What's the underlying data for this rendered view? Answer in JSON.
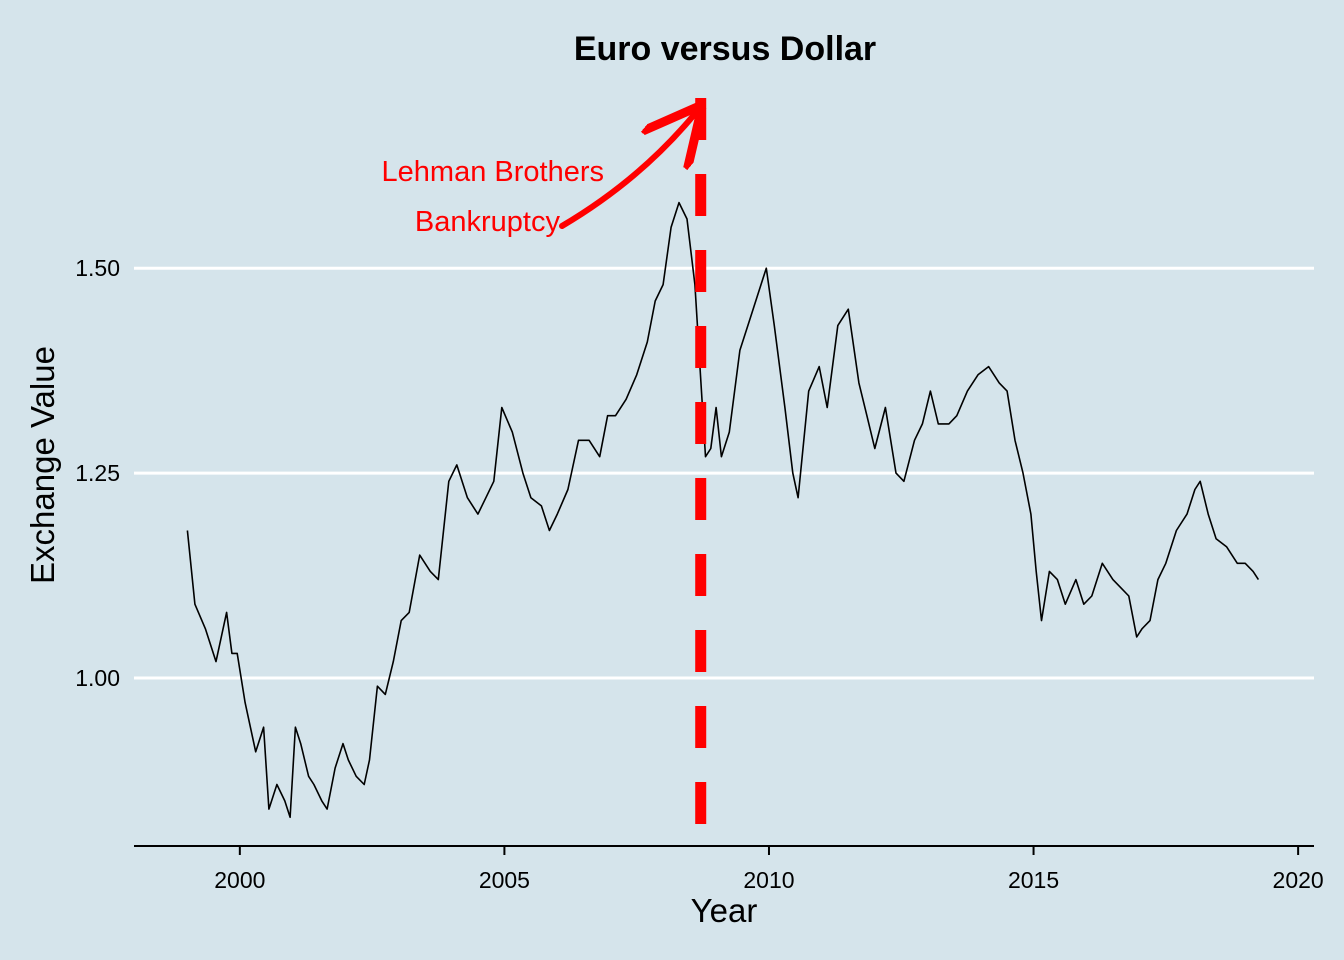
{
  "chart_data": {
    "type": "line",
    "title": "Euro versus Dollar",
    "xlabel": "Year",
    "ylabel": "Exchange Value",
    "xlim": [
      1998.0,
      2020.3
    ],
    "ylim": [
      0.795,
      1.715
    ],
    "x_ticks": [
      2000,
      2005,
      2010,
      2015,
      2020
    ],
    "x_tick_labels": [
      "2000",
      "2005",
      "2010",
      "2015",
      "2020"
    ],
    "y_ticks": [
      1.0,
      1.25,
      1.5
    ],
    "y_tick_labels": [
      "1.00",
      "1.25",
      "1.50"
    ],
    "grid": "horizontal major lines",
    "legend": "none",
    "colors": {
      "background": "#d5e4eb",
      "gridline": "#ffffff",
      "line": "#000000",
      "annotation": "#ff0000"
    },
    "series": [
      {
        "x": [
          1999.01,
          1999.15,
          1999.35,
          1999.55,
          1999.75,
          1999.85,
          1999.95,
          2000.1,
          2000.3,
          2000.45,
          2000.55,
          2000.7,
          2000.85,
          2000.95,
          2001.05,
          2001.15,
          2001.3,
          2001.4,
          2001.55,
          2001.65,
          2001.8,
          2001.95,
          2002.05,
          2002.2,
          2002.35,
          2002.45,
          2002.6,
          2002.75,
          2002.9,
          2003.05,
          2003.2,
          2003.4,
          2003.6,
          2003.75,
          2003.95,
          2004.1,
          2004.3,
          2004.5,
          2004.65,
          2004.8,
          2004.95,
          2005.15,
          2005.35,
          2005.5,
          2005.7,
          2005.85,
          2006.0,
          2006.2,
          2006.4,
          2006.6,
          2006.8,
          2006.95,
          2007.1,
          2007.3,
          2007.5,
          2007.7,
          2007.85,
          2008.0,
          2008.15,
          2008.3,
          2008.45,
          2008.6,
          2008.8,
          2008.9,
          2009.0,
          2009.1,
          2009.25,
          2009.45,
          2009.65,
          2009.85,
          2009.95,
          2010.1,
          2010.3,
          2010.45,
          2010.55,
          2010.75,
          2010.95,
          2011.1,
          2011.3,
          2011.5,
          2011.7,
          2011.85,
          2012.0,
          2012.2,
          2012.4,
          2012.55,
          2012.75,
          2012.9,
          2013.05,
          2013.2,
          2013.4,
          2013.55,
          2013.75,
          2013.95,
          2014.15,
          2014.35,
          2014.5,
          2014.65,
          2014.8,
          2014.95,
          2015.05,
          2015.15,
          2015.3,
          2015.45,
          2015.6,
          2015.8,
          2015.95,
          2016.1,
          2016.3,
          2016.5,
          2016.65,
          2016.8,
          2016.95,
          2017.05,
          2017.2,
          2017.35,
          2017.5,
          2017.7,
          2017.9,
          2018.05,
          2018.15,
          2018.3,
          2018.45,
          2018.65,
          2018.85,
          2019.0,
          2019.15,
          2019.25
        ],
        "y": [
          1.18,
          1.09,
          1.06,
          1.02,
          1.08,
          1.03,
          1.03,
          0.97,
          0.91,
          0.94,
          0.84,
          0.87,
          0.85,
          0.83,
          0.94,
          0.92,
          0.88,
          0.87,
          0.85,
          0.84,
          0.89,
          0.92,
          0.9,
          0.88,
          0.87,
          0.9,
          0.99,
          0.98,
          1.02,
          1.07,
          1.08,
          1.15,
          1.13,
          1.12,
          1.24,
          1.26,
          1.22,
          1.2,
          1.22,
          1.24,
          1.33,
          1.3,
          1.25,
          1.22,
          1.21,
          1.18,
          1.2,
          1.23,
          1.29,
          1.29,
          1.27,
          1.32,
          1.32,
          1.34,
          1.37,
          1.41,
          1.46,
          1.48,
          1.55,
          1.58,
          1.56,
          1.48,
          1.27,
          1.28,
          1.33,
          1.27,
          1.3,
          1.4,
          1.44,
          1.48,
          1.5,
          1.43,
          1.33,
          1.25,
          1.22,
          1.35,
          1.38,
          1.33,
          1.43,
          1.45,
          1.36,
          1.32,
          1.28,
          1.33,
          1.25,
          1.24,
          1.29,
          1.31,
          1.35,
          1.31,
          1.31,
          1.32,
          1.35,
          1.37,
          1.38,
          1.36,
          1.35,
          1.29,
          1.25,
          1.2,
          1.13,
          1.07,
          1.13,
          1.12,
          1.09,
          1.12,
          1.09,
          1.1,
          1.14,
          1.12,
          1.11,
          1.1,
          1.05,
          1.06,
          1.07,
          1.12,
          1.14,
          1.18,
          1.2,
          1.23,
          1.24,
          1.2,
          1.17,
          1.16,
          1.14,
          1.14,
          1.13,
          1.12
        ]
      }
    ],
    "annotations": [
      {
        "type": "vline",
        "x": 2008.71,
        "style": "dashed",
        "color": "#ff0000"
      },
      {
        "type": "text",
        "lines": [
          "Lehman Brothers",
          "Bankruptcy"
        ],
        "color": "#ff0000"
      }
    ]
  }
}
